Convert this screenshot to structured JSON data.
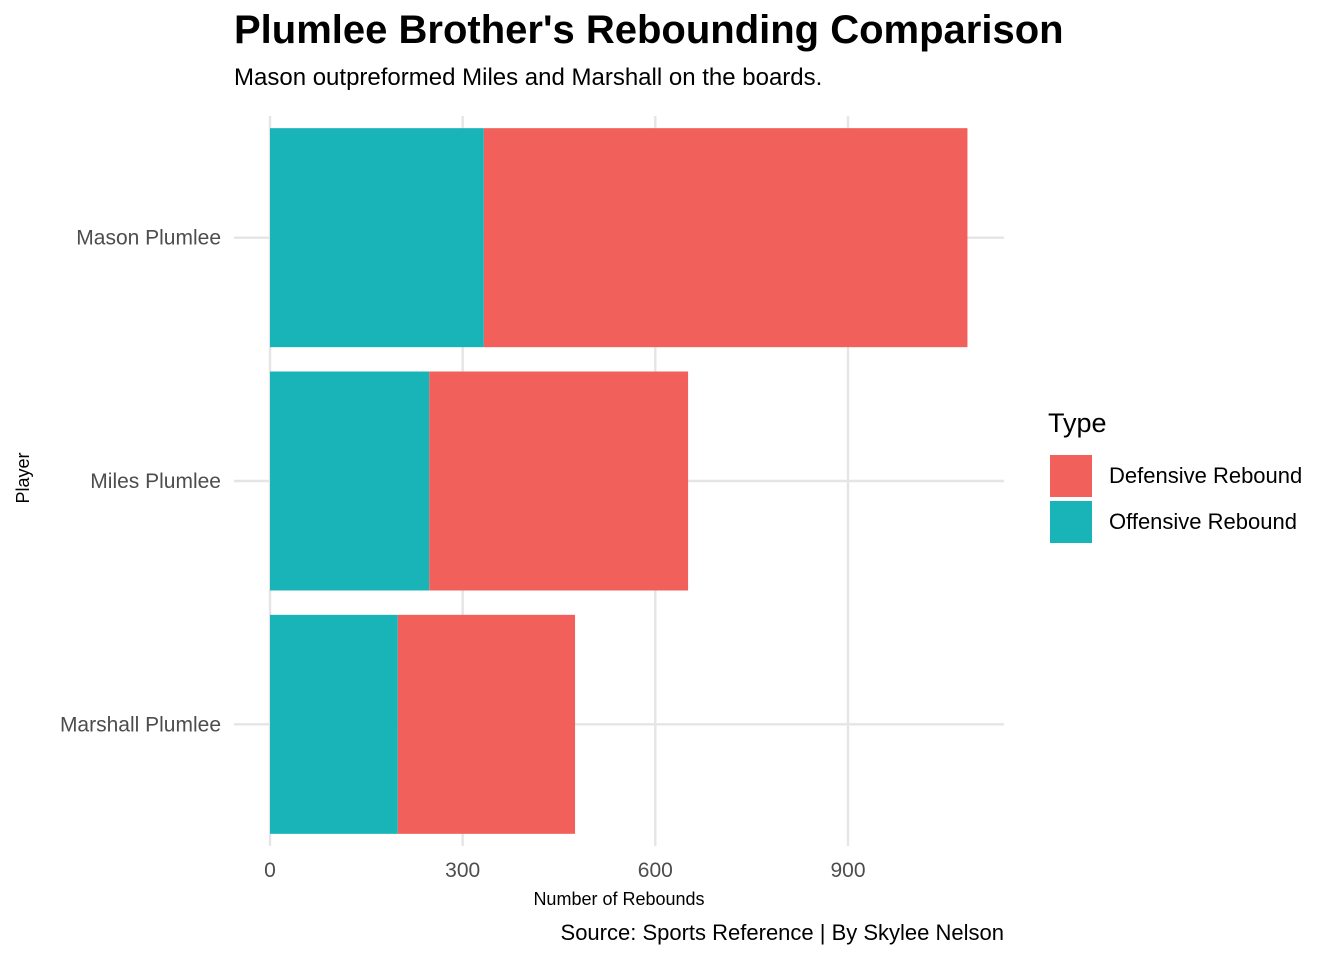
{
  "chart_data": {
    "type": "bar",
    "orientation": "horizontal",
    "stacked": true,
    "title": "Plumlee Brother's Rebounding Comparison",
    "subtitle": "Mason outpreformed Miles and Marshall on the boards.",
    "caption": "Source: Sports Reference | By Skylee Nelson",
    "xlabel": "Number of Rebounds",
    "ylabel": "Player",
    "categories": [
      "Mason Plumlee",
      "Miles Plumlee",
      "Marshall Plumlee"
    ],
    "series": [
      {
        "name": "Offensive Rebound",
        "color": "#19B4B8",
        "values": [
          333,
          248,
          199
        ]
      },
      {
        "name": "Defensive Rebound",
        "color": "#F2605C",
        "values": [
          753,
          403,
          276
        ]
      }
    ],
    "xlim": [
      0,
      1140
    ],
    "xticks": [
      0,
      300,
      600,
      900
    ],
    "grid": true,
    "legend": {
      "title": "Type",
      "position": "right",
      "items": [
        {
          "label": "Defensive Rebound",
          "color": "#F2605C"
        },
        {
          "label": "Offensive Rebound",
          "color": "#19B4B8"
        }
      ]
    }
  }
}
